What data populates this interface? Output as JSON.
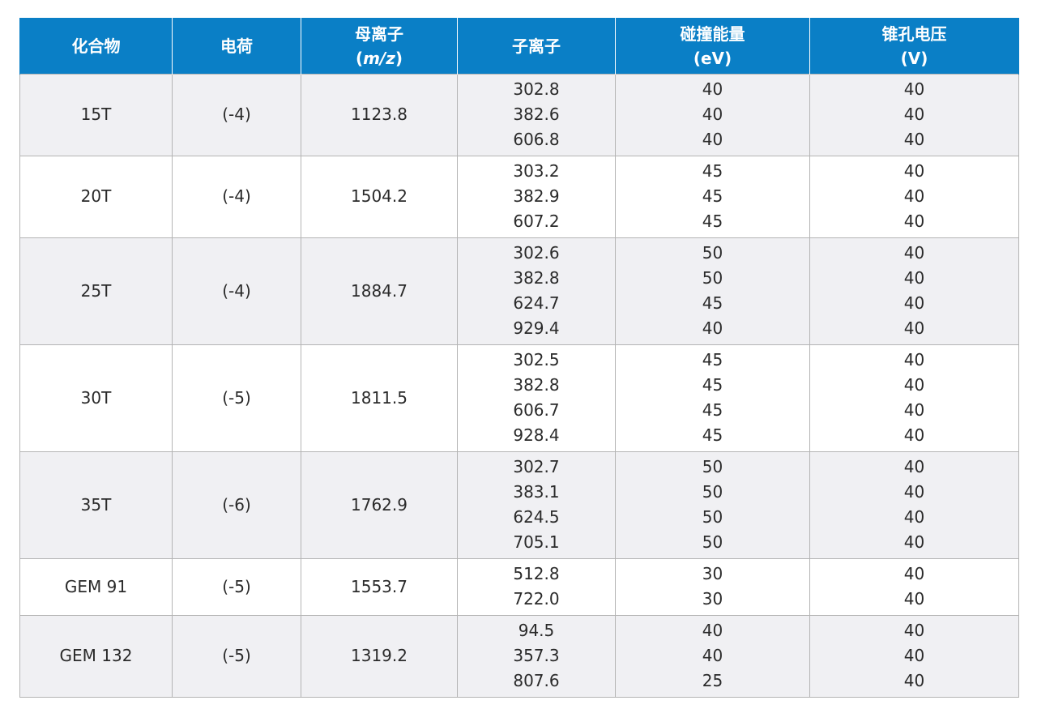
{
  "headers": {
    "compound": "化合物",
    "charge": "电荷",
    "parent_ion": "母离子",
    "parent_ion_unit_open": "(",
    "parent_ion_unit_mz": "m/z",
    "parent_ion_unit_close": ")",
    "product_ion": "子离子",
    "collision_energy": "碰撞能量",
    "collision_energy_unit": "(eV)",
    "cone_voltage": "锥孔电压",
    "cone_voltage_unit": "(V)"
  },
  "rows": [
    {
      "compound": "15T",
      "charge": "(-4)",
      "parent_ion": "1123.8",
      "product_ions": [
        "302.8",
        "382.6",
        "606.8"
      ],
      "collision_energy": [
        "40",
        "40",
        "40"
      ],
      "cone_voltage": [
        "40",
        "40",
        "40"
      ]
    },
    {
      "compound": "20T",
      "charge": "(-4)",
      "parent_ion": "1504.2",
      "product_ions": [
        "303.2",
        "382.9",
        "607.2"
      ],
      "collision_energy": [
        "45",
        "45",
        "45"
      ],
      "cone_voltage": [
        "40",
        "40",
        "40"
      ]
    },
    {
      "compound": "25T",
      "charge": "(-4)",
      "parent_ion": "1884.7",
      "product_ions": [
        "302.6",
        "382.8",
        "624.7",
        "929.4"
      ],
      "collision_energy": [
        "50",
        "50",
        "45",
        "40"
      ],
      "cone_voltage": [
        "40",
        "40",
        "40",
        "40"
      ]
    },
    {
      "compound": "30T",
      "charge": "(-5)",
      "parent_ion": "1811.5",
      "product_ions": [
        "302.5",
        "382.8",
        "606.7",
        "928.4"
      ],
      "collision_energy": [
        "45",
        "45",
        "45",
        "45"
      ],
      "cone_voltage": [
        "40",
        "40",
        "40",
        "40"
      ]
    },
    {
      "compound": "35T",
      "charge": "(-6)",
      "parent_ion": "1762.9",
      "product_ions": [
        "302.7",
        "383.1",
        "624.5",
        "705.1"
      ],
      "collision_energy": [
        "50",
        "50",
        "50",
        "50"
      ],
      "cone_voltage": [
        "40",
        "40",
        "40",
        "40"
      ]
    },
    {
      "compound": "GEM 91",
      "charge": "(-5)",
      "parent_ion": "1553.7",
      "product_ions": [
        "512.8",
        "722.0"
      ],
      "collision_energy": [
        "30",
        "30"
      ],
      "cone_voltage": [
        "40",
        "40"
      ]
    },
    {
      "compound": "GEM 132",
      "charge": "(-5)",
      "parent_ion": "1319.2",
      "product_ions": [
        "94.5",
        "357.3",
        "807.6"
      ],
      "collision_energy": [
        "40",
        "40",
        "25"
      ],
      "cone_voltage": [
        "40",
        "40",
        "40"
      ]
    }
  ],
  "colors": {
    "header_bg": "#0a7fc6",
    "header_text": "#ffffff",
    "shaded_row": "#f0f0f3",
    "plain_row": "#ffffff",
    "grid": "#b4b4b4"
  }
}
